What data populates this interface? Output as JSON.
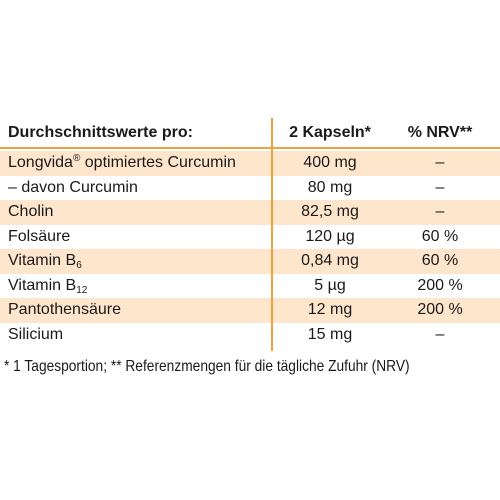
{
  "table": {
    "header": [
      "Durchschnittswerte pro:",
      "2 Kapseln*",
      "% NRV**"
    ],
    "rows": [
      {
        "name": [
          {
            "text": "Longvida"
          },
          {
            "text": "®",
            "pos": "sup"
          },
          {
            "text": " optimiertes Curcumin"
          }
        ],
        "amount": "400 mg",
        "nrv": "–"
      },
      {
        "name": [
          {
            "text": "– davon Curcumin"
          }
        ],
        "amount": "80 mg",
        "nrv": "–"
      },
      {
        "name": [
          {
            "text": "Cholin"
          }
        ],
        "amount": "82,5 mg",
        "nrv": "–"
      },
      {
        "name": [
          {
            "text": "Folsäure"
          }
        ],
        "amount": "120 µg",
        "nrv": "60 %"
      },
      {
        "name": [
          {
            "text": "Vitamin B"
          },
          {
            "text": "6",
            "pos": "sub"
          }
        ],
        "amount": "0,84 mg",
        "nrv": "60 %"
      },
      {
        "name": [
          {
            "text": "Vitamin B"
          },
          {
            "text": "12",
            "pos": "sub"
          }
        ],
        "amount": "5 µg",
        "nrv": "200 %"
      },
      {
        "name": [
          {
            "text": "Pantothensäure"
          }
        ],
        "amount": "12 mg",
        "nrv": "200 %"
      },
      {
        "name": [
          {
            "text": "Silicium"
          }
        ],
        "amount": "15 mg",
        "nrv": "–"
      }
    ]
  },
  "footnote": "* 1 Tagesportion; ** Referenzmengen für die tägliche Zufuhr (NRV)"
}
